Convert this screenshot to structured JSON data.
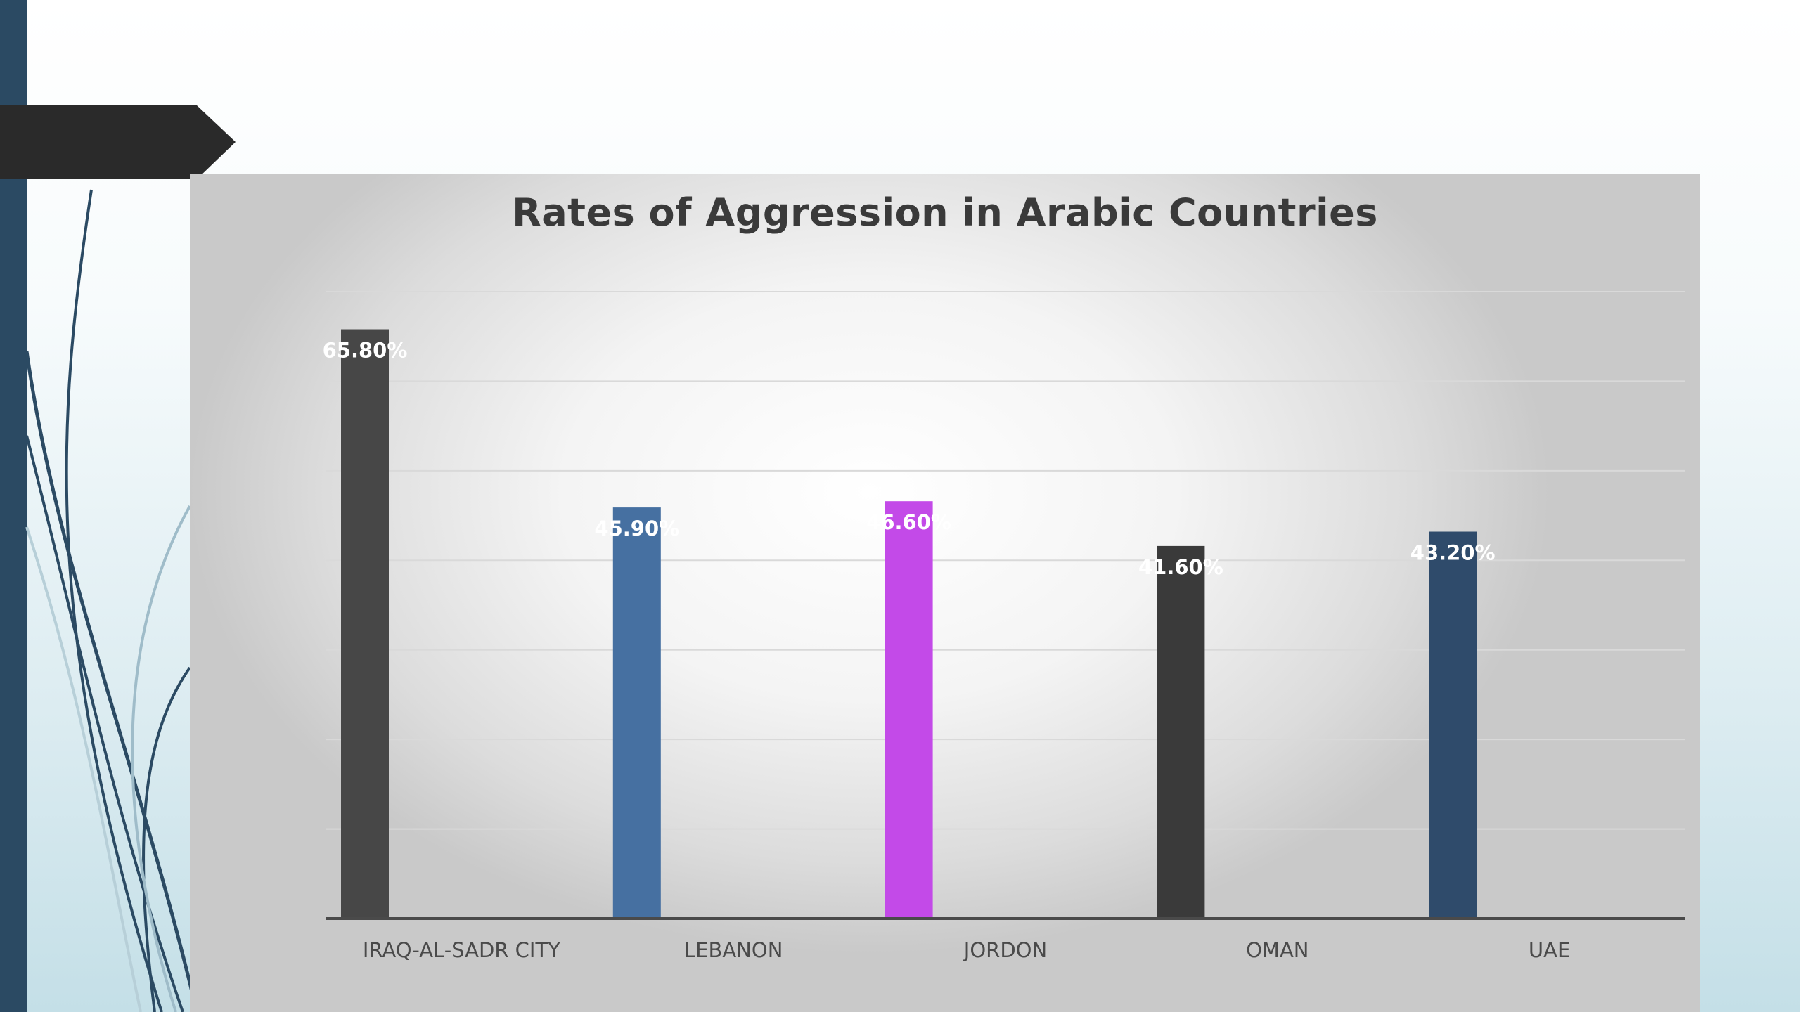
{
  "slide": {
    "accent_bar_color": "#2b4a63",
    "tab_color": "#2a2a2a"
  },
  "chart_data": {
    "type": "bar",
    "title": "Rates of Aggression in Arabic Countries",
    "xlabel": "",
    "ylabel": "",
    "categories": [
      "IRAQ-AL-SADR CITY",
      "LEBANON",
      "JORDON",
      "OMAN",
      "UAE"
    ],
    "values": [
      65.8,
      45.9,
      46.6,
      41.6,
      43.2
    ],
    "value_labels": [
      "65.80%",
      "45.90%",
      "46.60%",
      "41.60%",
      "43.20%"
    ],
    "colors": [
      "#474747",
      "#4670a1",
      "#c34ae8",
      "#3a3a3a",
      "#2f4b6b"
    ],
    "ylim": [
      0,
      70
    ],
    "grid": true,
    "legend": "none"
  }
}
